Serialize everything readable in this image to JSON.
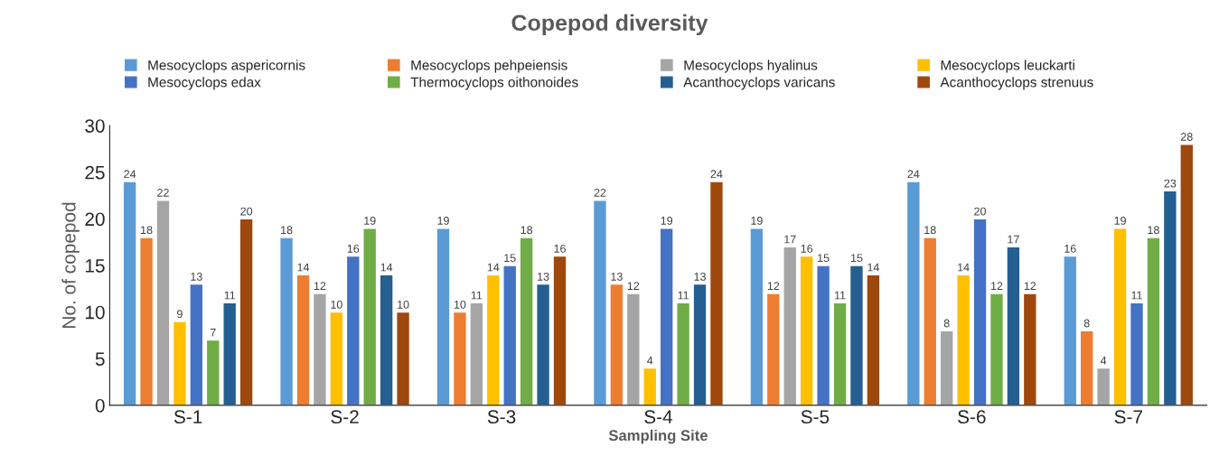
{
  "chart_data": {
    "type": "bar",
    "title": "Copepod diversity",
    "xlabel": "Sampling Site",
    "ylabel": "No. of copepod",
    "categories": [
      "S-1",
      "S-2",
      "S-3",
      "S-4",
      "S-5",
      "S-6",
      "S-7"
    ],
    "series": [
      {
        "name": "Mesocyclops aspericornis",
        "color": "#5b9bd5",
        "values": [
          24,
          18,
          19,
          22,
          19,
          24,
          16
        ]
      },
      {
        "name": "Mesocyclops pehpeiensis",
        "color": "#ed7d31",
        "values": [
          18,
          14,
          10,
          13,
          12,
          18,
          8
        ]
      },
      {
        "name": "Mesocyclops hyalinus",
        "color": "#a5a5a5",
        "values": [
          22,
          12,
          11,
          12,
          17,
          8,
          4
        ]
      },
      {
        "name": "Mesocyclops leuckarti",
        "color": "#ffc000",
        "values": [
          9,
          10,
          14,
          4,
          16,
          14,
          19
        ]
      },
      {
        "name": "Mesocyclops edax",
        "color": "#4472c4",
        "values": [
          13,
          16,
          15,
          19,
          15,
          20,
          11
        ]
      },
      {
        "name": "Thermocyclops oithonoides",
        "color": "#70ad47",
        "values": [
          7,
          19,
          18,
          11,
          11,
          12,
          18
        ]
      },
      {
        "name": "Acanthocyclops varicans",
        "color": "#255e91",
        "values": [
          11,
          14,
          13,
          13,
          15,
          17,
          23
        ]
      },
      {
        "name": "Acanthocyclops strenuus",
        "color": "#9e480e",
        "values": [
          20,
          10,
          16,
          24,
          14,
          12,
          28
        ]
      }
    ],
    "ylim": [
      0,
      30
    ],
    "yticks": [
      0,
      5,
      10,
      15,
      20,
      25,
      30
    ],
    "grid": false,
    "legend": "top",
    "data_labels": true
  }
}
